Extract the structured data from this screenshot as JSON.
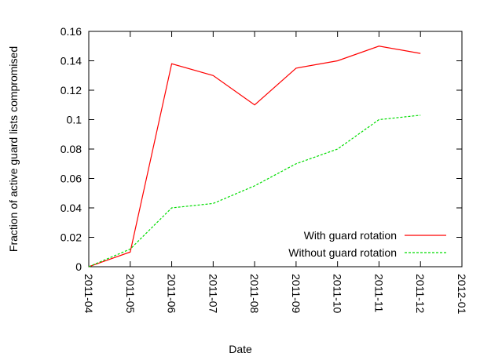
{
  "chart_data": {
    "type": "line",
    "x_label": "Date",
    "y_label": "Fraction of active guard lists compromised",
    "x": [
      "2011-04",
      "2011-05",
      "2011-06",
      "2011-07",
      "2011-08",
      "2011-09",
      "2011-10",
      "2011-11",
      "2011-12"
    ],
    "series": [
      {
        "name": "With guard rotation",
        "color": "#ff0000",
        "values": [
          0,
          0.01,
          0.138,
          0.13,
          0.11,
          0.135,
          0.14,
          0.15,
          0.145
        ]
      },
      {
        "name": "Without guard rotation",
        "color": "#00dd00",
        "dashed": true,
        "values": [
          0,
          0.012,
          0.04,
          0.043,
          0.055,
          0.07,
          0.08,
          0.1,
          0.103
        ]
      }
    ],
    "xlim": [
      "2011-04",
      "2012-01"
    ],
    "xticks": [
      "2011-04",
      "2011-05",
      "2011-06",
      "2011-07",
      "2011-08",
      "2011-09",
      "2011-10",
      "2011-11",
      "2011-12",
      "2012-01"
    ],
    "ylim": [
      0,
      0.16
    ],
    "yticks": [
      0,
      0.02,
      0.04,
      0.06,
      0.08,
      0.1,
      0.12,
      0.14,
      0.16
    ],
    "legend": "lower right",
    "grid": false
  }
}
